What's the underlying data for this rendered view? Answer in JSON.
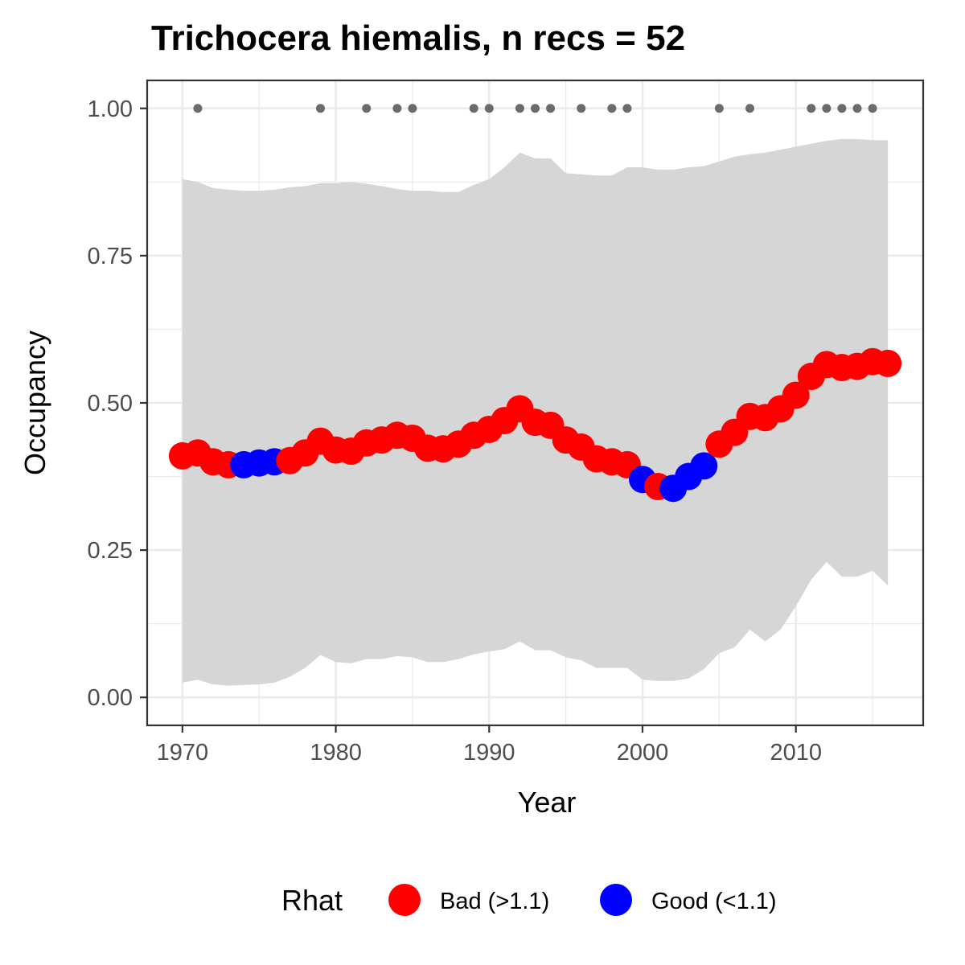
{
  "chart_data": {
    "type": "line",
    "title": "Trichocera hiemalis, n recs = 52",
    "xlabel": "Year",
    "ylabel": "Occupancy",
    "xlim": [
      1967.7,
      2018.3
    ],
    "ylim": [
      -0.0475,
      1.0475
    ],
    "x_ticks": [
      1970,
      1980,
      1990,
      2000,
      2010
    ],
    "x_tick_labels": [
      "1970",
      "1980",
      "1990",
      "2000",
      "2010"
    ],
    "y_ticks": [
      0,
      0.25,
      0.5,
      0.75,
      1.0
    ],
    "y_tick_labels": [
      "0.00",
      "0.25",
      "0.50",
      "0.75",
      "1.00"
    ],
    "grid": true,
    "legend_position": "bottom",
    "legend": {
      "title": "Rhat",
      "entries": [
        {
          "key": "bad",
          "label": "Bad (>1.1)",
          "color": "#ff0000"
        },
        {
          "key": "good",
          "label": "Good (<1.1)",
          "color": "#0000ff"
        }
      ]
    },
    "colors": {
      "bad": "#ff0000",
      "good": "#0000ff",
      "ribbon": "#d6d6d6",
      "record": "#6b6b6b",
      "panel_border": "#333333",
      "grid": "#ebebeb"
    },
    "series": [
      {
        "x": [
          1970,
          1971,
          1972,
          1973,
          1974,
          1975,
          1976,
          1977,
          1978,
          1979,
          1980,
          1981,
          1982,
          1983,
          1984,
          1985,
          1986,
          1987,
          1988,
          1989,
          1990,
          1991,
          1992,
          1993,
          1994,
          1995,
          1996,
          1997,
          1998,
          1999,
          2000,
          2001,
          2002,
          2003,
          2004,
          2005,
          2006,
          2007,
          2008,
          2009,
          2010,
          2011,
          2012,
          2013,
          2014,
          2015,
          2016
        ],
        "y": [
          0.41,
          0.415,
          0.4,
          0.395,
          0.395,
          0.398,
          0.4,
          0.402,
          0.415,
          0.435,
          0.42,
          0.418,
          0.432,
          0.437,
          0.445,
          0.44,
          0.423,
          0.422,
          0.43,
          0.445,
          0.455,
          0.47,
          0.49,
          0.467,
          0.462,
          0.437,
          0.425,
          0.405,
          0.4,
          0.395,
          0.37,
          0.358,
          0.355,
          0.375,
          0.393,
          0.43,
          0.45,
          0.477,
          0.475,
          0.49,
          0.513,
          0.545,
          0.565,
          0.56,
          0.562,
          0.57,
          0.567
        ],
        "rhat": [
          "bad",
          "bad",
          "bad",
          "bad",
          "good",
          "good",
          "good",
          "bad",
          "bad",
          "bad",
          "bad",
          "bad",
          "bad",
          "bad",
          "bad",
          "bad",
          "bad",
          "bad",
          "bad",
          "bad",
          "bad",
          "bad",
          "bad",
          "bad",
          "bad",
          "bad",
          "bad",
          "bad",
          "bad",
          "bad",
          "good",
          "bad",
          "good",
          "good",
          "good",
          "bad",
          "bad",
          "bad",
          "bad",
          "bad",
          "bad",
          "bad",
          "bad",
          "bad",
          "bad",
          "bad",
          "bad"
        ],
        "lower": [
          0.025,
          0.03,
          0.022,
          0.02,
          0.021,
          0.022,
          0.025,
          0.035,
          0.05,
          0.072,
          0.06,
          0.058,
          0.065,
          0.065,
          0.07,
          0.068,
          0.06,
          0.06,
          0.065,
          0.073,
          0.078,
          0.082,
          0.095,
          0.08,
          0.08,
          0.068,
          0.063,
          0.05,
          0.05,
          0.05,
          0.03,
          0.028,
          0.028,
          0.032,
          0.048,
          0.075,
          0.085,
          0.115,
          0.095,
          0.115,
          0.155,
          0.2,
          0.23,
          0.205,
          0.205,
          0.215,
          0.19
        ],
        "upper": [
          0.88,
          0.875,
          0.865,
          0.862,
          0.86,
          0.86,
          0.862,
          0.866,
          0.868,
          0.873,
          0.873,
          0.875,
          0.872,
          0.868,
          0.863,
          0.86,
          0.86,
          0.858,
          0.858,
          0.87,
          0.88,
          0.9,
          0.925,
          0.915,
          0.915,
          0.89,
          0.888,
          0.886,
          0.886,
          0.9,
          0.9,
          0.896,
          0.896,
          0.9,
          0.902,
          0.91,
          0.918,
          0.922,
          0.925,
          0.93,
          0.935,
          0.94,
          0.945,
          0.948,
          0.948,
          0.946,
          0.946
        ]
      }
    ],
    "records": {
      "y": 1.0,
      "x": [
        1971,
        1979,
        1982,
        1984,
        1985,
        1989,
        1990,
        1992,
        1993,
        1994,
        1996,
        1998,
        1999,
        2005,
        2007,
        2011,
        2012,
        2013,
        2014,
        2015
      ]
    }
  }
}
